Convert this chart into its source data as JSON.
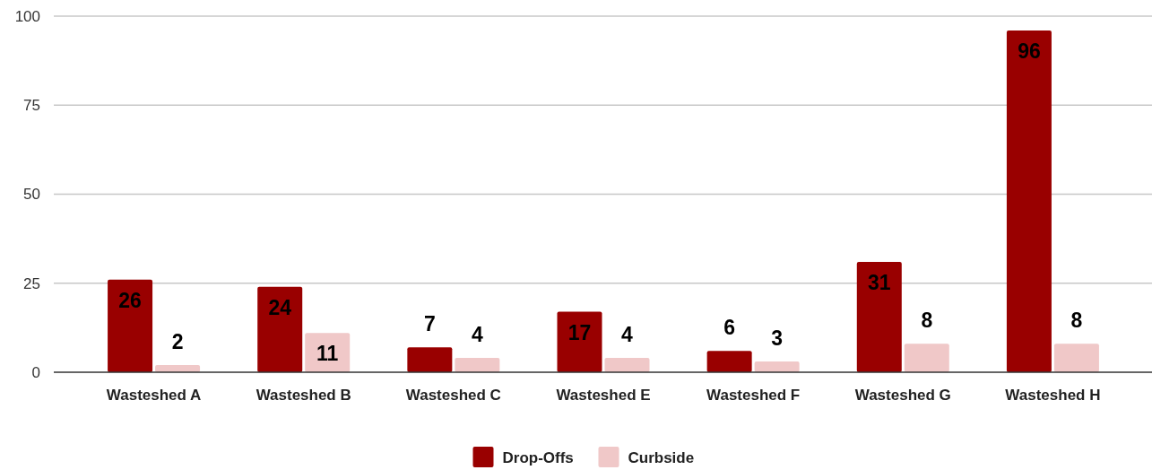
{
  "chart_data": {
    "type": "bar",
    "categories": [
      "Wasteshed A",
      "Wasteshed B",
      "Wasteshed C",
      "Wasteshed E",
      "Wasteshed F",
      "Wasteshed G",
      "Wasteshed H"
    ],
    "series": [
      {
        "name": "Drop-Offs",
        "color": "#990000",
        "values": [
          26,
          24,
          7,
          17,
          6,
          31,
          96
        ]
      },
      {
        "name": "Curbside",
        "color": "#f0c8c8",
        "values": [
          2,
          11,
          4,
          4,
          3,
          8,
          8
        ]
      }
    ],
    "ylim": [
      0,
      100
    ],
    "yticks": [
      0,
      25,
      50,
      75,
      100
    ],
    "grid": "y",
    "legend": "bottom",
    "data_labels": true
  }
}
